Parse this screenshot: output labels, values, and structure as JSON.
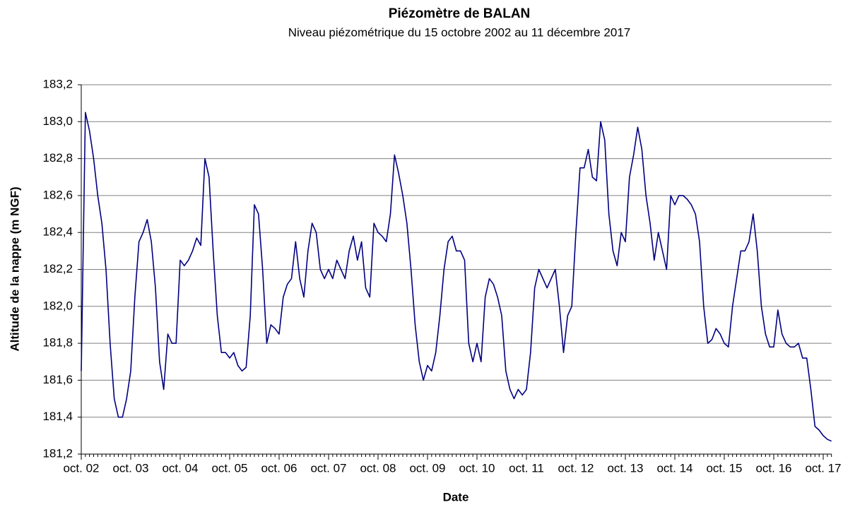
{
  "chart_data": {
    "type": "line",
    "title": "Piézomètre de BALAN",
    "subtitle": "Niveau piézométrique du 15 octobre 2002 au 11 décembre 2017",
    "x_label": "Date",
    "y_label": "Altitude de la nappe (m NGF)",
    "grid": true,
    "xlim": [
      "2002-10",
      "2017-12"
    ],
    "xticks": [
      {
        "value": "2002-10",
        "label": "oct. 02"
      },
      {
        "value": "2003-10",
        "label": "oct. 03"
      },
      {
        "value": "2004-10",
        "label": "oct. 04"
      },
      {
        "value": "2005-10",
        "label": "oct. 05"
      },
      {
        "value": "2006-10",
        "label": "oct. 06"
      },
      {
        "value": "2007-10",
        "label": "oct. 07"
      },
      {
        "value": "2008-10",
        "label": "oct. 08"
      },
      {
        "value": "2009-10",
        "label": "oct. 09"
      },
      {
        "value": "2010-10",
        "label": "oct. 10"
      },
      {
        "value": "2011-10",
        "label": "oct. 11"
      },
      {
        "value": "2012-10",
        "label": "oct. 12"
      },
      {
        "value": "2013-10",
        "label": "oct. 13"
      },
      {
        "value": "2014-10",
        "label": "oct. 14"
      },
      {
        "value": "2015-10",
        "label": "oct. 15"
      },
      {
        "value": "2016-10",
        "label": "oct. 16"
      },
      {
        "value": "2017-10",
        "label": "oct. 17"
      }
    ],
    "ylim": [
      181.2,
      183.2
    ],
    "yticks": [
      {
        "value": 181.2,
        "label": "181,2"
      },
      {
        "value": 181.4,
        "label": "181,4"
      },
      {
        "value": 181.6,
        "label": "181,6"
      },
      {
        "value": 181.8,
        "label": "181,8"
      },
      {
        "value": 182.0,
        "label": "182,0"
      },
      {
        "value": 182.2,
        "label": "182,2"
      },
      {
        "value": 182.4,
        "label": "182,4"
      },
      {
        "value": 182.6,
        "label": "182,6"
      },
      {
        "value": 182.8,
        "label": "182,8"
      },
      {
        "value": 183.0,
        "label": "183,0"
      },
      {
        "value": 183.2,
        "label": "183,2"
      }
    ],
    "x": [
      "2002-10",
      "2002-11",
      "2002-12",
      "2003-01",
      "2003-02",
      "2003-03",
      "2003-04",
      "2003-05",
      "2003-06",
      "2003-07",
      "2003-08",
      "2003-09",
      "2003-10",
      "2003-11",
      "2003-12",
      "2004-01",
      "2004-02",
      "2004-03",
      "2004-04",
      "2004-05",
      "2004-06",
      "2004-07",
      "2004-08",
      "2004-09",
      "2004-10",
      "2004-11",
      "2004-12",
      "2005-01",
      "2005-02",
      "2005-03",
      "2005-04",
      "2005-05",
      "2005-06",
      "2005-07",
      "2005-08",
      "2005-09",
      "2005-10",
      "2005-11",
      "2005-12",
      "2006-01",
      "2006-02",
      "2006-03",
      "2006-04",
      "2006-05",
      "2006-06",
      "2006-07",
      "2006-08",
      "2006-09",
      "2006-10",
      "2006-11",
      "2006-12",
      "2007-01",
      "2007-02",
      "2007-03",
      "2007-04",
      "2007-05",
      "2007-06",
      "2007-07",
      "2007-08",
      "2007-09",
      "2007-10",
      "2007-11",
      "2007-12",
      "2008-01",
      "2008-02",
      "2008-03",
      "2008-04",
      "2008-05",
      "2008-06",
      "2008-07",
      "2008-08",
      "2008-09",
      "2008-10",
      "2008-11",
      "2008-12",
      "2009-01",
      "2009-02",
      "2009-03",
      "2009-04",
      "2009-05",
      "2009-06",
      "2009-07",
      "2009-08",
      "2009-09",
      "2009-10",
      "2009-11",
      "2009-12",
      "2010-01",
      "2010-02",
      "2010-03",
      "2010-04",
      "2010-05",
      "2010-06",
      "2010-07",
      "2010-08",
      "2010-09",
      "2010-10",
      "2010-11",
      "2010-12",
      "2011-01",
      "2011-02",
      "2011-03",
      "2011-04",
      "2011-05",
      "2011-06",
      "2011-07",
      "2011-08",
      "2011-09",
      "2011-10",
      "2011-11",
      "2011-12",
      "2012-01",
      "2012-02",
      "2012-03",
      "2012-04",
      "2012-05",
      "2012-06",
      "2012-07",
      "2012-08",
      "2012-09",
      "2012-10",
      "2012-11",
      "2012-12",
      "2013-01",
      "2013-02",
      "2013-03",
      "2013-04",
      "2013-05",
      "2013-06",
      "2013-07",
      "2013-08",
      "2013-09",
      "2013-10",
      "2013-11",
      "2013-12",
      "2014-01",
      "2014-02",
      "2014-03",
      "2014-04",
      "2014-05",
      "2014-06",
      "2014-07",
      "2014-08",
      "2014-09",
      "2014-10",
      "2014-11",
      "2014-12",
      "2015-01",
      "2015-02",
      "2015-03",
      "2015-04",
      "2015-05",
      "2015-06",
      "2015-07",
      "2015-08",
      "2015-09",
      "2015-10",
      "2015-11",
      "2015-12",
      "2016-01",
      "2016-02",
      "2016-03",
      "2016-04",
      "2016-05",
      "2016-06",
      "2016-07",
      "2016-08",
      "2016-09",
      "2016-10",
      "2016-11",
      "2016-12",
      "2017-01",
      "2017-02",
      "2017-03",
      "2017-04",
      "2017-05",
      "2017-06",
      "2017-07",
      "2017-08",
      "2017-09",
      "2017-10",
      "2017-11",
      "2017-12"
    ],
    "series": [
      {
        "color": "#000080",
        "values": [
          181.65,
          183.05,
          182.95,
          182.8,
          182.6,
          182.45,
          182.2,
          181.8,
          181.5,
          181.4,
          181.4,
          181.5,
          181.65,
          182.05,
          182.35,
          182.4,
          182.47,
          182.35,
          182.1,
          181.7,
          181.55,
          181.85,
          181.8,
          181.8,
          182.25,
          182.22,
          182.25,
          182.3,
          182.37,
          182.33,
          182.8,
          182.7,
          182.3,
          181.95,
          181.75,
          181.75,
          181.72,
          181.75,
          181.68,
          181.65,
          181.67,
          181.95,
          182.55,
          182.5,
          182.2,
          181.8,
          181.9,
          181.88,
          181.85,
          182.05,
          182.12,
          182.15,
          182.35,
          182.15,
          182.05,
          182.3,
          182.45,
          182.4,
          182.2,
          182.15,
          182.2,
          182.15,
          182.25,
          182.2,
          182.15,
          182.3,
          182.38,
          182.25,
          182.35,
          182.1,
          182.05,
          182.45,
          182.4,
          182.38,
          182.35,
          182.5,
          182.82,
          182.72,
          182.6,
          182.45,
          182.2,
          181.9,
          181.7,
          181.6,
          181.68,
          181.65,
          181.75,
          181.95,
          182.2,
          182.35,
          182.38,
          182.3,
          182.3,
          182.25,
          181.8,
          181.7,
          181.8,
          181.7,
          182.05,
          182.15,
          182.12,
          182.05,
          181.95,
          181.65,
          181.55,
          181.5,
          181.55,
          181.52,
          181.55,
          181.75,
          182.1,
          182.2,
          182.15,
          182.1,
          182.15,
          182.2,
          182.0,
          181.75,
          181.95,
          182.0,
          182.4,
          182.75,
          182.75,
          182.85,
          182.7,
          182.68,
          183.0,
          182.9,
          182.5,
          182.3,
          182.22,
          182.4,
          182.35,
          182.7,
          182.82,
          182.97,
          182.85,
          182.6,
          182.45,
          182.25,
          182.4,
          182.3,
          182.2,
          182.6,
          182.55,
          182.6,
          182.6,
          182.58,
          182.55,
          182.5,
          182.35,
          182.0,
          181.8,
          181.82,
          181.88,
          181.85,
          181.8,
          181.78,
          182.0,
          182.15,
          182.3,
          182.3,
          182.35,
          182.5,
          182.3,
          182.0,
          181.85,
          181.78,
          181.78,
          181.98,
          181.85,
          181.8,
          181.78,
          181.78,
          181.8,
          181.72,
          181.72,
          181.55,
          181.35,
          181.33,
          181.3,
          181.28,
          181.27
        ]
      }
    ]
  }
}
